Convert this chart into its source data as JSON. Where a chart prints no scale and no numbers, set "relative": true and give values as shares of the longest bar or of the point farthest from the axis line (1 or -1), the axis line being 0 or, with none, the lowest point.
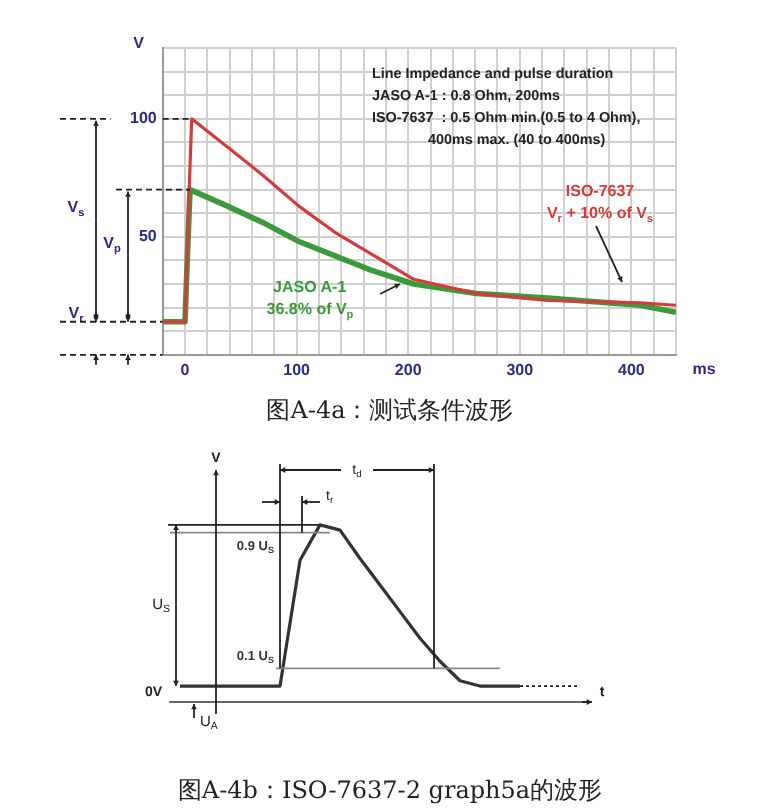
{
  "chart_data": [
    {
      "type": "line",
      "xlabel": "ms",
      "ylabel": "V",
      "xlim": [
        -20,
        440
      ],
      "ylim": [
        0,
        130
      ],
      "xticks": [
        {
          "value": -20,
          "label": null
        },
        0,
        {
          "value": 20,
          "label": null
        },
        {
          "value": 40,
          "label": null
        },
        {
          "value": 60,
          "label": null
        },
        {
          "value": 80,
          "label": null
        },
        100,
        {
          "value": 120,
          "label": null
        },
        {
          "value": 140,
          "label": null
        },
        {
          "value": 160,
          "label": null
        },
        {
          "value": 180,
          "label": null
        },
        200,
        {
          "value": 220,
          "label": null
        },
        {
          "value": 240,
          "label": null
        },
        {
          "value": 260,
          "label": null
        },
        {
          "value": 280,
          "label": null
        },
        300,
        {
          "value": 320,
          "label": null
        },
        {
          "value": 340,
          "label": null
        },
        {
          "value": 360,
          "label": null
        },
        {
          "value": 380,
          "label": null
        },
        400,
        {
          "value": 420,
          "label": null
        },
        {
          "value": 440,
          "label": null
        }
      ],
      "yticks": [
        {
          "value": 0,
          "label": null
        },
        {
          "value": 10,
          "label": null
        },
        {
          "value": 20,
          "label": null
        },
        {
          "value": 30,
          "label": null
        },
        {
          "value": 40,
          "label": null
        },
        50,
        {
          "value": 60,
          "label": null
        },
        {
          "value": 70,
          "label": null
        },
        {
          "value": 80,
          "label": null
        },
        {
          "value": 90,
          "label": null
        },
        100,
        {
          "value": 110,
          "label": null
        },
        {
          "value": 120,
          "label": null
        },
        {
          "value": 130,
          "label": null
        }
      ],
      "grid": true,
      "legend": false,
      "marker": "none",
      "series": [
        {
          "color": "#d43c3c",
          "x": [
            -20,
            0,
            3,
            6,
            38,
            70,
            102,
            134,
            166,
            205,
            261,
            325,
            408,
            440
          ],
          "values": [
            14,
            14,
            60,
            100,
            88,
            76,
            63,
            52,
            43,
            32,
            26,
            23,
            22,
            21
          ]
        },
        {
          "color": "#3c9a3c",
          "x": [
            -20,
            0,
            2,
            4.5,
            38,
            70,
            102,
            134,
            166,
            205,
            261,
            325,
            408,
            440
          ],
          "values": [
            14,
            14,
            40,
            70,
            63,
            56,
            48,
            42,
            36,
            30,
            26,
            24,
            21,
            18
          ]
        }
      ],
      "annotations": [
        "Line Impedance and pulse duration",
        "JASO A-1 : 0.8 Ohm, 200ms",
        "ISO-7637  : 0.5 Ohm min.(0.5 to 4 Ohm),",
        "400ms max. (40 to 400ms)",
        "ISO-7637",
        "V$_{r}$ + 10% of V$_{s}$",
        "JASO A-1",
        "36.8% of V$_{p}$",
        "V$_{s}$",
        "V$_{p}$",
        "V$_{r}$",
        "图A-4a：测试条件波形"
      ]
    },
    {
      "type": "line",
      "relative": true,
      "legend": false,
      "marker": "none",
      "xlabel": "t",
      "ylabel": "V",
      "categories": [
        null,
        null,
        null,
        null,
        null,
        null,
        null,
        null,
        null,
        null,
        null,
        null,
        null,
        null,
        null,
        null,
        null,
        null,
        null,
        null,
        null
      ],
      "series": [
        {
          "color": "#333333",
          "values": [
            0.09,
            0.09,
            0.09,
            0.09,
            0.09,
            0.09,
            0.8,
            1,
            0.97,
            0.81,
            0.66,
            0.51,
            0.36,
            0.23,
            0.12,
            0.09,
            0.09,
            0.09,
            null,
            null,
            null
          ]
        }
      ],
      "ref_lines": [
        {
          "axis": "y",
          "value": 0.956,
          "label": "0.9 U$_{S}$"
        },
        {
          "axis": "y",
          "value": 0.19,
          "label": "0.1 U$_{S}$"
        }
      ],
      "annotations": [
        "t$_{d}$",
        "t$_{r}$",
        "U$_{S}$",
        "U$_{A}$",
        "0V",
        "图A-4b：ISO-7637-2 graph5a的波形"
      ]
    }
  ]
}
